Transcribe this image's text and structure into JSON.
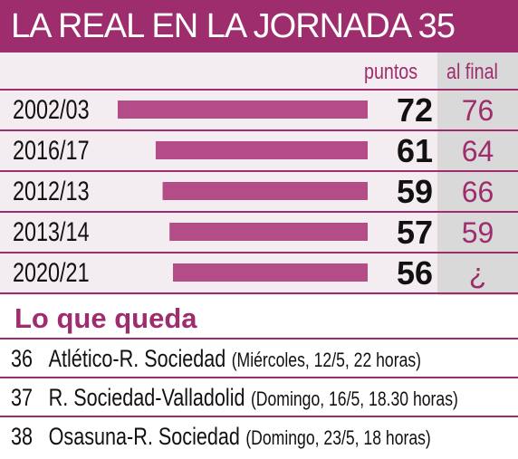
{
  "header": {
    "title": "LA REAL EN LA JORNADA 35"
  },
  "columns": {
    "points": "puntos",
    "final": "al final"
  },
  "chart_data": {
    "type": "bar",
    "title": "LA REAL EN LA JORNADA 35",
    "categories": [
      "2002/03",
      "2016/17",
      "2012/13",
      "2013/14",
      "2020/21"
    ],
    "series": [
      {
        "name": "puntos",
        "values": [
          72,
          61,
          59,
          57,
          56
        ]
      },
      {
        "name": "al final",
        "values": [
          "76",
          "64",
          "66",
          "59",
          "¿"
        ]
      }
    ],
    "xlabel": "",
    "ylabel": ""
  },
  "remaining": {
    "title": "Lo que queda",
    "matches": [
      {
        "number": "36",
        "teams": "Atlético-R. Sociedad",
        "date": "(Miércoles, 12/5, 22 horas)"
      },
      {
        "number": "37",
        "teams": "R. Sociedad-Valladolid",
        "date": "(Domingo, 16/5, 18.30 horas)"
      },
      {
        "number": "38",
        "teams": "Osasuna-R. Sociedad",
        "date": "(Domingo, 23/5, 18 horas)"
      }
    ]
  },
  "colors": {
    "accent": "#9e2d6e",
    "bar": "#b44c87",
    "panel": "#f3ecf0",
    "final_column": "#d9d9d9"
  }
}
